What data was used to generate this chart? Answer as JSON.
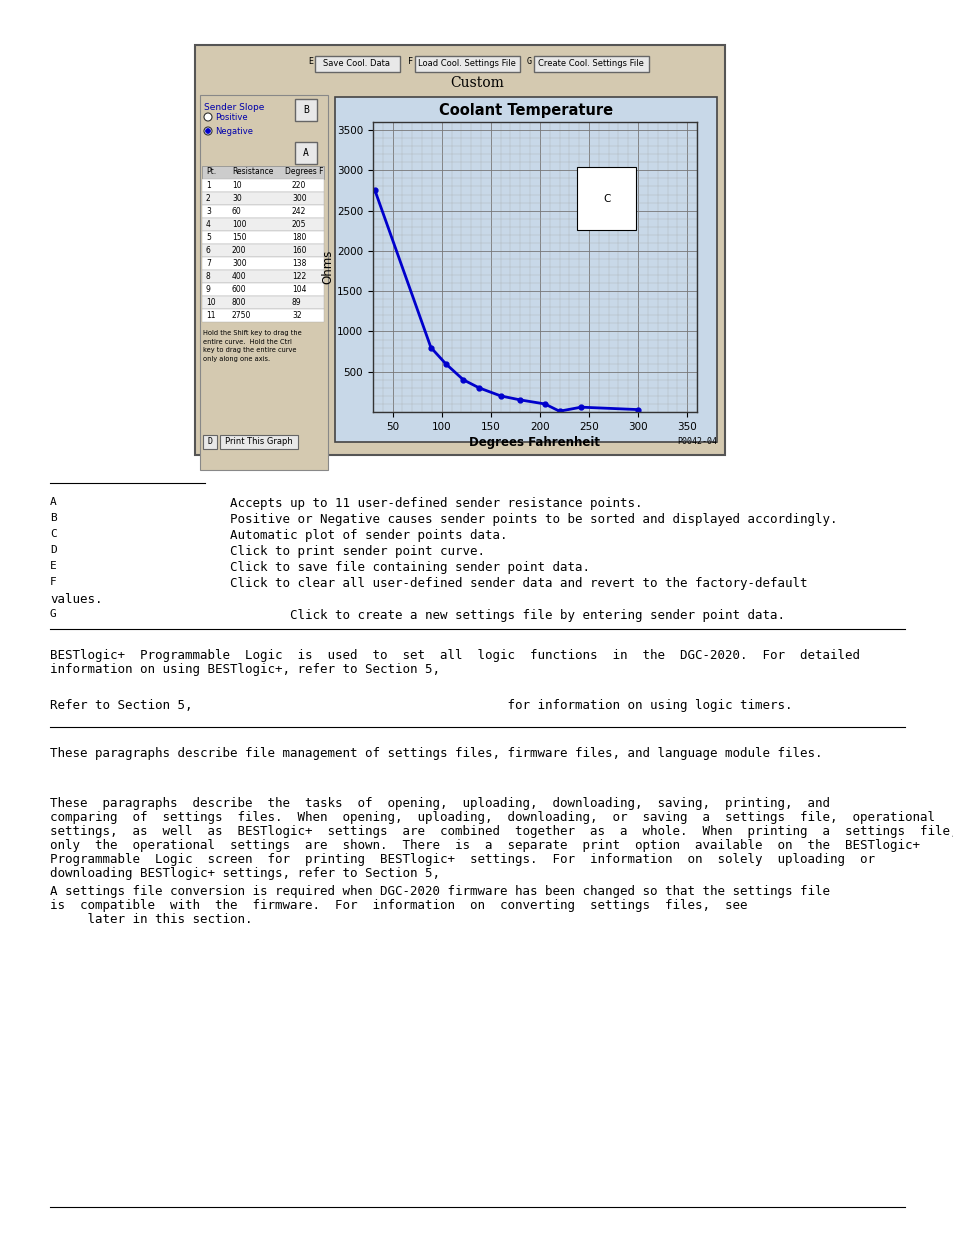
{
  "bg_color": "#ffffff",
  "screenshot_bg": "#d4c9b0",
  "chart_bg": "#c8d8e8",
  "chart_title": "Coolant Temperature",
  "chart_xlabel": "Degrees Fahrenheit",
  "chart_ylabel": "Ohms",
  "custom_label": "Custom",
  "curve_color": "#0000cc",
  "table_data": [
    [
      1,
      10,
      220
    ],
    [
      2,
      30,
      300
    ],
    [
      3,
      60,
      242
    ],
    [
      4,
      100,
      205
    ],
    [
      5,
      150,
      180
    ],
    [
      6,
      200,
      160
    ],
    [
      7,
      300,
      138
    ],
    [
      8,
      400,
      122
    ],
    [
      9,
      600,
      104
    ],
    [
      10,
      800,
      89
    ],
    [
      11,
      2750,
      32
    ]
  ],
  "para1_line1": "BESTlogic+  Programmable  Logic  is  used  to  set  all  logic  functions  in  the  DGC-2020.  For  detailed",
  "para1_line2": "information on using BESTlogic+, refer to Section 5,",
  "para2": "Refer to Section 5,                                          for information on using logic timers.",
  "para3": "These paragraphs describe file management of settings files, firmware files, and language module files.",
  "para4_line1": "These  paragraphs  describe  the  tasks  of  opening,  uploading,  downloading,  saving,  printing,  and",
  "para4_line2": "comparing  of  settings  files.  When  opening,  uploading,  downloading,  or  saving  a  settings  file,  operational",
  "para4_line3": "settings,  as  well  as  BESTlogic+  settings  are  combined  together  as  a  whole.  When  printing  a  settings  file,",
  "para4_line4": "only  the  operational  settings  are  shown.  There  is  a  separate  print  option  available  on  the  BESTlogic+",
  "para4_line5": "Programmable  Logic  screen  for  printing  BESTlogic+  settings.  For  information  on  solely  uploading  or",
  "para4_line6": "downloading BESTlogic+ settings, refer to Section 5,",
  "para5_line1": "A settings file conversion is required when DGC-2020 firmware has been changed so that the settings file",
  "para5_line2": "is  compatible  with  the  firmware.  For  information  on  converting  settings  files,  see",
  "para5_line3": "     later in this section."
}
